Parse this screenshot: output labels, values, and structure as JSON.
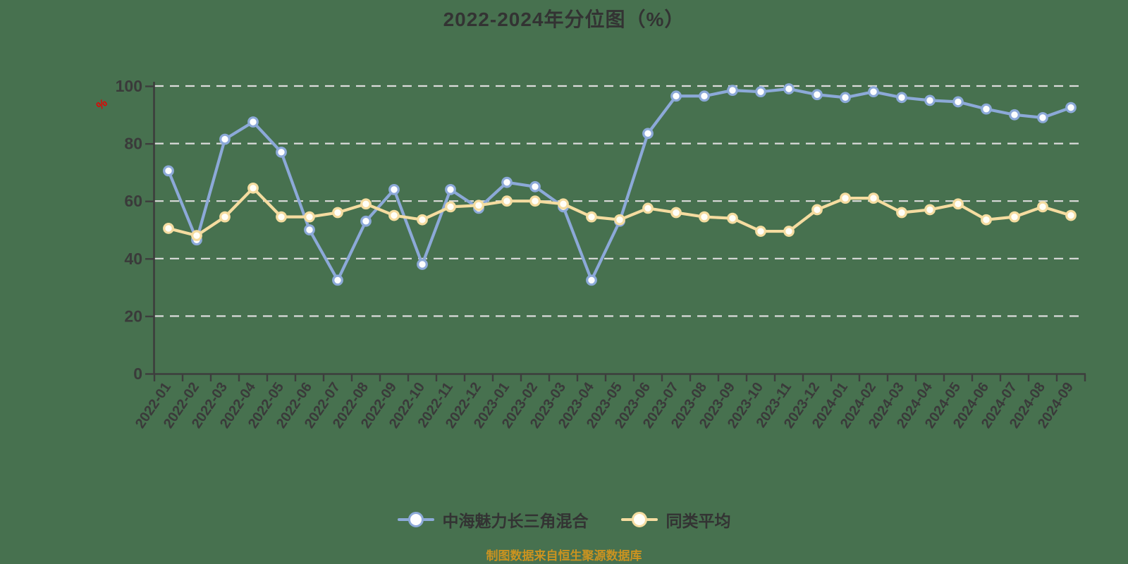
{
  "page": {
    "background_color": "#47714F",
    "unit_label_color": "#E60000",
    "grid_color": "#DCDCDC",
    "axis_color": "#3D3D3D",
    "tick_label_color": "#3A3A3A"
  },
  "title": {
    "text": "2022-2024年分位图（%）"
  },
  "y_axis_unit": "%",
  "legend": [
    {
      "label": "中海魅力长三角混合",
      "color": "#8CA9D8",
      "fill": "#FDFEFF"
    },
    {
      "label": "同类平均",
      "color": "#F5DCA0",
      "fill": "#FFFEF7"
    }
  ],
  "footer": {
    "text": "制图数据来自恒生聚源数据库",
    "color": "#CB9320"
  },
  "chart_data": {
    "type": "line",
    "title": "2022-2024年分位图（%）",
    "xlabel": "",
    "ylabel": "%",
    "ylim": [
      0,
      100
    ],
    "yticks": [
      0,
      20,
      40,
      60,
      80,
      100
    ],
    "grid": true,
    "grid_style": "dashed",
    "legend_position": "bottom",
    "categories": [
      "2022-01",
      "2022-02",
      "2022-03",
      "2022-04",
      "2022-05",
      "2022-06",
      "2022-07",
      "2022-08",
      "2022-09",
      "2022-10",
      "2022-11",
      "2022-12",
      "2023-01",
      "2023-02",
      "2023-03",
      "2023-04",
      "2023-05",
      "2023-06",
      "2023-07",
      "2023-08",
      "2023-09",
      "2023-10",
      "2023-11",
      "2023-12",
      "2024-01",
      "2024-02",
      "2024-03",
      "2024-04",
      "2024-05",
      "2024-06",
      "2024-07",
      "2024-08",
      "2024-09"
    ],
    "series": [
      {
        "name": "中海魅力长三角混合",
        "color": "#8CA9D8",
        "marker_fill": "#FDFEFF",
        "values": [
          70.5,
          46.5,
          81.5,
          87.5,
          77,
          50,
          32.5,
          53,
          64,
          38,
          64,
          57.5,
          66.5,
          65,
          58,
          32.5,
          53,
          83.5,
          96.5,
          96.5,
          98.5,
          98,
          99,
          97,
          96,
          98,
          96,
          95,
          94.5,
          92,
          90,
          89,
          92.5
        ]
      },
      {
        "name": "同类平均",
        "color": "#F5DCA0",
        "marker_fill": "#FFFEF7",
        "values": [
          50.5,
          48,
          54.5,
          64.5,
          54.5,
          54.5,
          56,
          59,
          55,
          53.5,
          58,
          58.5,
          60,
          60,
          59,
          54.5,
          53.5,
          57.5,
          56,
          54.5,
          54,
          49.5,
          49.5,
          57,
          61,
          61,
          56,
          57,
          59,
          53.5,
          54.5,
          58,
          55
        ]
      }
    ]
  }
}
